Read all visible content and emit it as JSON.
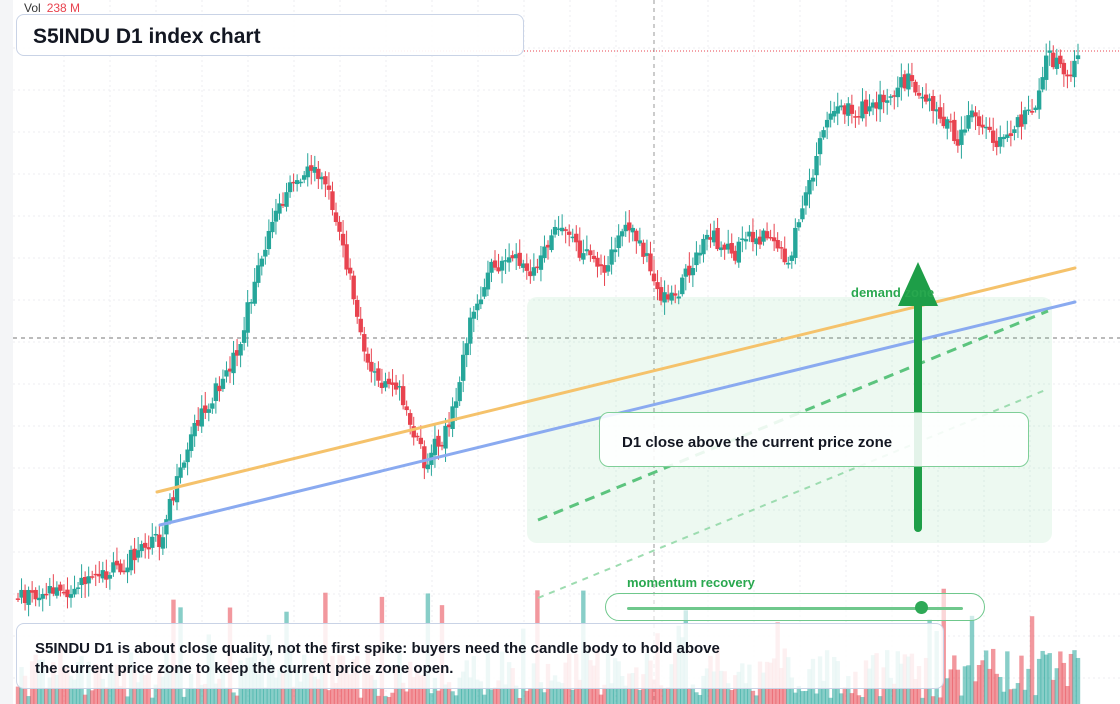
{
  "header": {
    "vol_label": "Vol",
    "vol_value": "238 M",
    "title": "S5INDU D1 index chart"
  },
  "annotations": {
    "demand_zone_label": "demand zone",
    "callout": "D1 close above the current price zone",
    "momentum_label": "momentum recovery",
    "momentum_level": 0.87,
    "note": "S5INDU D1 is about close quality, not the first spike: buyers need the candle body to hold above the current price zone to keep the current price zone open."
  },
  "colors": {
    "up": "#26a69a",
    "down": "#e8434f",
    "orange_trendline": "#f5c26b",
    "blue_trendline": "#8aaaf0",
    "zone": "#6fd08c",
    "arrow": "#1e9e48"
  },
  "chart_data": {
    "type": "candlestick",
    "title": "S5INDU D1 index chart",
    "bars": 150,
    "series": [
      {
        "name": "candles",
        "seed": 11,
        "start": 596,
        "end": 49,
        "trend_curve": [
          [
            0,
            596
          ],
          [
            20,
            585
          ],
          [
            40,
            540
          ],
          [
            50,
            430
          ],
          [
            62,
            350
          ],
          [
            70,
            245
          ],
          [
            75,
            200
          ],
          [
            82,
            165
          ],
          [
            88,
            190
          ],
          [
            92,
            250
          ],
          [
            100,
            375
          ],
          [
            108,
            395
          ],
          [
            115,
            460
          ],
          [
            122,
            430
          ],
          [
            128,
            320
          ],
          [
            134,
            270
          ],
          [
            140,
            260
          ],
          [
            147,
            270
          ],
          [
            150,
            240
          ],
          [
            155,
            225
          ],
          [
            160,
            255
          ],
          [
            165,
            270
          ],
          [
            172,
            230
          ],
          [
            176,
            240
          ],
          [
            182,
            300
          ],
          [
            187,
            290
          ],
          [
            195,
            230
          ],
          [
            202,
            255
          ],
          [
            207,
            240
          ],
          [
            213,
            235
          ],
          [
            218,
            260
          ],
          [
            225,
            170
          ],
          [
            230,
            110
          ],
          [
            238,
            110
          ],
          [
            245,
            100
          ],
          [
            252,
            80
          ],
          [
            260,
            110
          ],
          [
            266,
            140
          ],
          [
            270,
            110
          ],
          [
            276,
            140
          ],
          [
            282,
            130
          ],
          [
            288,
            100
          ],
          [
            291,
            55
          ],
          [
            298,
            80
          ],
          [
            300,
            49
          ]
        ]
      }
    ],
    "volume": {
      "label": "Vol",
      "last": "238 M"
    },
    "trendlines": [
      "orange",
      "blue"
    ],
    "zones": [
      "demand zone"
    ]
  }
}
